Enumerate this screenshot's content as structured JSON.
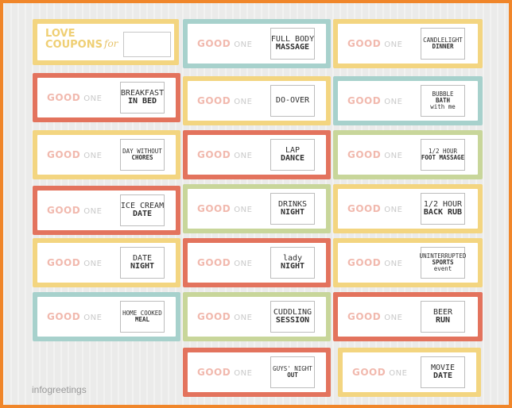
{
  "title_coupon": {
    "title_line1": "LOVE",
    "title_line2": "COUPONS",
    "for_text": "for"
  },
  "good_for": "GOOD",
  "one_text": "ONE",
  "coupons": [
    {
      "label_lines": [
        "FULL BODY",
        "MASSAGE"
      ],
      "color": "#a7d1cc"
    },
    {
      "label_lines": [
        "CANDLELIGHT",
        "DINNER"
      ],
      "color": "#f3d580"
    },
    {
      "label_lines": [
        "BREAKFAST",
        "IN BED"
      ],
      "color": "#e3735d"
    },
    {
      "label_lines": [
        "DO-OVER"
      ],
      "color": "#f3d580"
    },
    {
      "label_lines": [
        "BUBBLE",
        "BATH",
        "with me"
      ],
      "color": "#a7d1cc"
    },
    {
      "label_lines": [
        "DAY WITHOUT",
        "CHORES"
      ],
      "color": "#f3d580"
    },
    {
      "label_lines": [
        "LAP",
        "DANCE"
      ],
      "color": "#e3735d"
    },
    {
      "label_lines": [
        "1/2 HOUR",
        "FOOT MASSAGE"
      ],
      "color": "#c8d69a"
    },
    {
      "label_lines": [
        "ICE CREAM",
        "DATE"
      ],
      "color": "#e3735d"
    },
    {
      "label_lines": [
        "DRINKS",
        "NIGHT"
      ],
      "color": "#c8d69a"
    },
    {
      "label_lines": [
        "1/2 HOUR",
        "BACK RUB"
      ],
      "color": "#f3d580"
    },
    {
      "label_lines": [
        "DATE",
        "NIGHT"
      ],
      "color": "#f3d580"
    },
    {
      "label_lines": [
        "lady",
        "NIGHT"
      ],
      "color": "#e3735d"
    },
    {
      "label_lines": [
        "UNINTERRUPTED",
        "SPORTS",
        "event"
      ],
      "color": "#f3d580"
    },
    {
      "label_lines": [
        "HOME COOKED",
        "MEAL"
      ],
      "color": "#a7d1cc"
    },
    {
      "label_lines": [
        "CUDDLING",
        "SESSION"
      ],
      "color": "#c8d69a"
    },
    {
      "label_lines": [
        "BEER",
        "RUN"
      ],
      "color": "#e3735d"
    },
    {
      "label_lines": [
        "GUYS' NIGHT",
        "OUT"
      ],
      "color": "#e3735d"
    },
    {
      "label_lines": [
        "MOVIE",
        "DATE"
      ],
      "color": "#f3d580"
    }
  ],
  "watermark": "infogreetings"
}
